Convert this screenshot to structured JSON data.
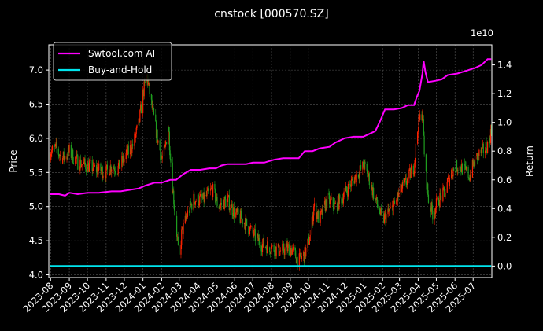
{
  "chart_data": {
    "type": "line",
    "title": "cnstock [000570.SZ]",
    "ylabel_left": "Price",
    "ylabel_right": "Return",
    "right_axis_offset": "1e10",
    "ylim_left": [
      3.96,
      7.37
    ],
    "ylim_right": [
      -0.08,
      1.54
    ],
    "yticks_left": [
      "4.0",
      "4.5",
      "5.0",
      "5.5",
      "6.0",
      "6.5",
      "7.0"
    ],
    "yticks_right": [
      "0.0",
      "0.2",
      "0.4",
      "0.6",
      "0.8",
      "1.0",
      "1.2",
      "1.4"
    ],
    "xticks": [
      "2023-08",
      "2023-09",
      "2023-10",
      "2023-11",
      "2023-12",
      "2024-01",
      "2024-02",
      "2024-03",
      "2024-04",
      "2024-05",
      "2024-06",
      "2024-07",
      "2024-08",
      "2024-09",
      "2024-10",
      "2024-11",
      "2024-12",
      "2025-01",
      "2025-02",
      "2025-03",
      "2025-04",
      "2025-05",
      "2025-06",
      "2025-07"
    ],
    "xlim": [
      "2023-07-29",
      "2025-08-01"
    ],
    "grid": true,
    "legend_position": "top-left",
    "colors": {
      "background": "#000000",
      "ai": "#ff00ff",
      "hold": "#00e5ee",
      "up": "#ff2200",
      "down": "#1f9e1f",
      "grid": "#555555"
    },
    "series": [
      {
        "name": "Swtool.com AI",
        "axis": "right",
        "points": [
          [
            "2023-07-31",
            0.5
          ],
          [
            "2023-08-15",
            0.5
          ],
          [
            "2023-08-25",
            0.49
          ],
          [
            "2023-09-01",
            0.51
          ],
          [
            "2023-09-15",
            0.5
          ],
          [
            "2023-10-01",
            0.51
          ],
          [
            "2023-10-20",
            0.51
          ],
          [
            "2023-11-10",
            0.52
          ],
          [
            "2023-11-25",
            0.52
          ],
          [
            "2023-12-10",
            0.53
          ],
          [
            "2023-12-25",
            0.54
          ],
          [
            "2024-01-05",
            0.56
          ],
          [
            "2024-01-20",
            0.58
          ],
          [
            "2024-02-01",
            0.58
          ],
          [
            "2024-02-15",
            0.6
          ],
          [
            "2024-02-25",
            0.6
          ],
          [
            "2024-03-08",
            0.64
          ],
          [
            "2024-03-20",
            0.67
          ],
          [
            "2024-04-05",
            0.67
          ],
          [
            "2024-04-20",
            0.68
          ],
          [
            "2024-05-01",
            0.68
          ],
          [
            "2024-05-10",
            0.7
          ],
          [
            "2024-05-20",
            0.71
          ],
          [
            "2024-06-05",
            0.71
          ],
          [
            "2024-06-20",
            0.71
          ],
          [
            "2024-07-01",
            0.72
          ],
          [
            "2024-07-20",
            0.72
          ],
          [
            "2024-08-05",
            0.74
          ],
          [
            "2024-08-20",
            0.75
          ],
          [
            "2024-09-05",
            0.75
          ],
          [
            "2024-09-15",
            0.75
          ],
          [
            "2024-09-25",
            0.8
          ],
          [
            "2024-10-08",
            0.8
          ],
          [
            "2024-10-20",
            0.82
          ],
          [
            "2024-11-05",
            0.83
          ],
          [
            "2024-11-15",
            0.86
          ],
          [
            "2024-11-30",
            0.89
          ],
          [
            "2024-12-15",
            0.9
          ],
          [
            "2024-12-31",
            0.9
          ],
          [
            "2025-01-10",
            0.92
          ],
          [
            "2025-01-20",
            0.94
          ],
          [
            "2025-01-28",
            1.01
          ],
          [
            "2025-02-05",
            1.09
          ],
          [
            "2025-02-20",
            1.09
          ],
          [
            "2025-03-05",
            1.1
          ],
          [
            "2025-03-15",
            1.12
          ],
          [
            "2025-03-25",
            1.12
          ],
          [
            "2025-03-30",
            1.18
          ],
          [
            "2025-04-03",
            1.22
          ],
          [
            "2025-04-08",
            1.34
          ],
          [
            "2025-04-10",
            1.43
          ],
          [
            "2025-04-13",
            1.35
          ],
          [
            "2025-04-17",
            1.28
          ],
          [
            "2025-04-30",
            1.29
          ],
          [
            "2025-05-10",
            1.3
          ],
          [
            "2025-05-20",
            1.33
          ],
          [
            "2025-06-05",
            1.34
          ],
          [
            "2025-06-20",
            1.36
          ],
          [
            "2025-07-05",
            1.38
          ],
          [
            "2025-07-15",
            1.4
          ],
          [
            "2025-07-25",
            1.44
          ],
          [
            "2025-07-31",
            1.44
          ]
        ]
      },
      {
        "name": "Buy-and-Hold",
        "axis": "right",
        "points": [
          [
            "2023-07-31",
            0.0
          ],
          [
            "2025-07-31",
            0.0
          ]
        ]
      },
      {
        "name": "price",
        "axis": "left",
        "points": [
          [
            "2023-07-31",
            5.8
          ],
          [
            "2023-08-10",
            5.85
          ],
          [
            "2023-08-20",
            5.7
          ],
          [
            "2023-09-01",
            5.8
          ],
          [
            "2023-09-15",
            5.65
          ],
          [
            "2023-10-01",
            5.6
          ],
          [
            "2023-10-15",
            5.55
          ],
          [
            "2023-11-01",
            5.5
          ],
          [
            "2023-11-10",
            5.6
          ],
          [
            "2023-11-20",
            5.55
          ],
          [
            "2023-12-01",
            5.7
          ],
          [
            "2023-12-15",
            5.9
          ],
          [
            "2023-12-25",
            6.2
          ],
          [
            "2024-01-02",
            6.7
          ],
          [
            "2024-01-08",
            6.9
          ],
          [
            "2024-01-15",
            6.5
          ],
          [
            "2024-01-25",
            6.0
          ],
          [
            "2024-02-01",
            5.7
          ],
          [
            "2024-02-06",
            5.8
          ],
          [
            "2024-02-12",
            6.2
          ],
          [
            "2024-02-18",
            5.4
          ],
          [
            "2024-02-24",
            4.8
          ],
          [
            "2024-03-01",
            4.25
          ],
          [
            "2024-03-05",
            4.6
          ],
          [
            "2024-03-15",
            4.9
          ],
          [
            "2024-03-25",
            5.1
          ],
          [
            "2024-04-10",
            5.1
          ],
          [
            "2024-04-25",
            5.25
          ],
          [
            "2024-05-05",
            5.0
          ],
          [
            "2024-05-20",
            5.1
          ],
          [
            "2024-06-01",
            4.9
          ],
          [
            "2024-06-15",
            4.8
          ],
          [
            "2024-07-01",
            4.6
          ],
          [
            "2024-07-15",
            4.45
          ],
          [
            "2024-08-01",
            4.4
          ],
          [
            "2024-08-15",
            4.35
          ],
          [
            "2024-09-01",
            4.4
          ],
          [
            "2024-09-15",
            4.2
          ],
          [
            "2024-09-25",
            4.3
          ],
          [
            "2024-10-05",
            4.6
          ],
          [
            "2024-10-10",
            5.0
          ],
          [
            "2024-10-20",
            4.8
          ],
          [
            "2024-11-01",
            5.1
          ],
          [
            "2024-11-15",
            5.0
          ],
          [
            "2024-12-01",
            5.2
          ],
          [
            "2024-12-15",
            5.4
          ],
          [
            "2025-01-01",
            5.6
          ],
          [
            "2025-01-10",
            5.4
          ],
          [
            "2025-01-20",
            5.1
          ],
          [
            "2025-02-01",
            4.8
          ],
          [
            "2025-02-10",
            4.9
          ],
          [
            "2025-02-20",
            5.0
          ],
          [
            "2025-03-01",
            5.2
          ],
          [
            "2025-03-15",
            5.4
          ],
          [
            "2025-03-25",
            5.6
          ],
          [
            "2025-04-01",
            6.2
          ],
          [
            "2025-04-08",
            6.4
          ],
          [
            "2025-04-12",
            5.6
          ],
          [
            "2025-04-18",
            5.1
          ],
          [
            "2025-04-25",
            4.9
          ],
          [
            "2025-05-05",
            5.1
          ],
          [
            "2025-05-15",
            5.2
          ],
          [
            "2025-05-25",
            5.5
          ],
          [
            "2025-06-05",
            5.6
          ],
          [
            "2025-06-15",
            5.55
          ],
          [
            "2025-06-25",
            5.45
          ],
          [
            "2025-07-05",
            5.7
          ],
          [
            "2025-07-15",
            5.8
          ],
          [
            "2025-07-25",
            5.9
          ],
          [
            "2025-07-31",
            6.1
          ]
        ]
      }
    ]
  }
}
